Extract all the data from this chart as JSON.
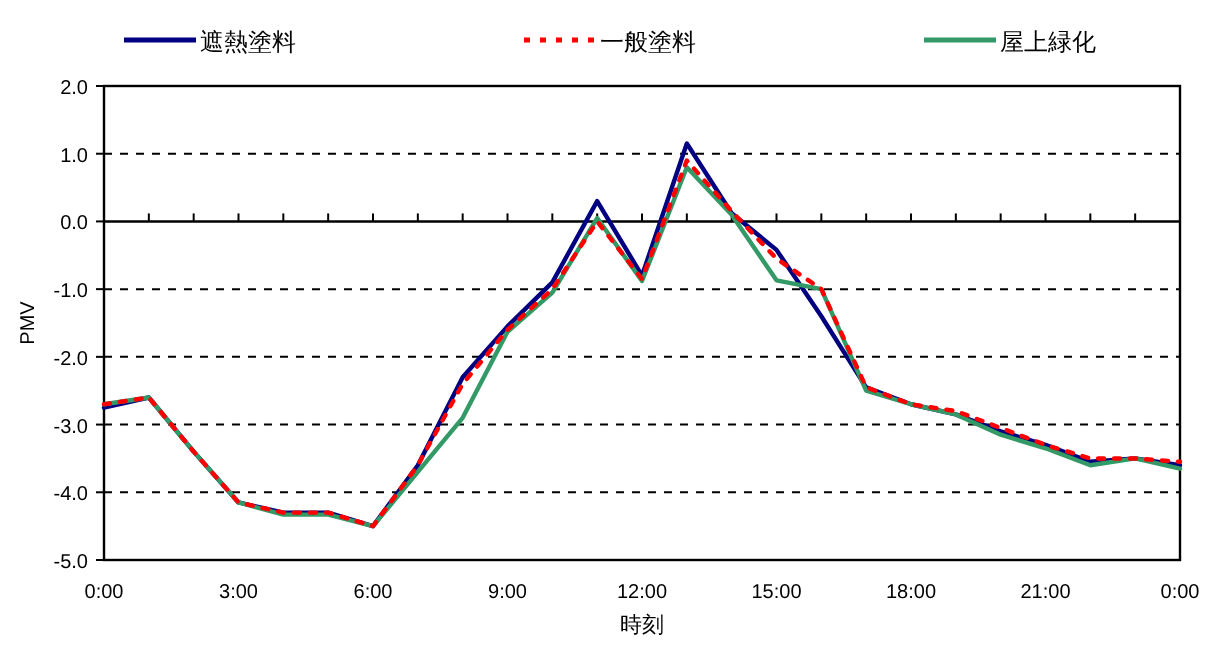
{
  "chart_data": {
    "type": "line",
    "xlabel": "時刻",
    "ylabel": "PMV",
    "x": [
      0,
      1,
      2,
      3,
      4,
      5,
      6,
      7,
      8,
      9,
      10,
      11,
      12,
      13,
      14,
      15,
      16,
      17,
      18,
      19,
      20,
      21,
      22,
      23,
      24
    ],
    "xlim": [
      0,
      24
    ],
    "xticks": [
      {
        "value": 0,
        "label": "0:00"
      },
      {
        "value": 3,
        "label": "3:00"
      },
      {
        "value": 6,
        "label": "6:00"
      },
      {
        "value": 9,
        "label": "9:00"
      },
      {
        "value": 12,
        "label": "12:00"
      },
      {
        "value": 15,
        "label": "15:00"
      },
      {
        "value": 18,
        "label": "18:00"
      },
      {
        "value": 21,
        "label": "21:00"
      },
      {
        "value": 24,
        "label": "0:00"
      }
    ],
    "ylim": [
      -5,
      2
    ],
    "yticks": [
      {
        "value": -5,
        "label": "-5.0"
      },
      {
        "value": -4,
        "label": "-4.0"
      },
      {
        "value": -3,
        "label": "-3.0"
      },
      {
        "value": -2,
        "label": "-2.0"
      },
      {
        "value": -1,
        "label": "-1.0"
      },
      {
        "value": 0,
        "label": "0.0"
      },
      {
        "value": 1,
        "label": "1.0"
      },
      {
        "value": 2,
        "label": "2.0"
      }
    ],
    "grid": "y",
    "legend": "top",
    "marker": "none",
    "series": [
      {
        "name": "遮熱塗料",
        "color": "#000080",
        "line_style": "solid",
        "values": [
          -2.75,
          -2.6,
          -3.4,
          -4.15,
          -4.3,
          -4.3,
          -4.5,
          -3.6,
          -2.3,
          -1.55,
          -0.9,
          0.3,
          -0.8,
          1.15,
          0.12,
          -0.42,
          -1.4,
          -2.45,
          -2.7,
          -2.85,
          -3.1,
          -3.3,
          -3.55,
          -3.5,
          -3.6
        ]
      },
      {
        "name": "一般塗料",
        "color": "#ff0000",
        "line_style": "dotted",
        "values": [
          -2.7,
          -2.6,
          -3.4,
          -4.15,
          -4.3,
          -4.3,
          -4.5,
          -3.6,
          -2.4,
          -1.6,
          -1.0,
          0.0,
          -0.85,
          0.9,
          0.15,
          -0.55,
          -1.0,
          -2.45,
          -2.7,
          -2.8,
          -3.05,
          -3.3,
          -3.5,
          -3.5,
          -3.55
        ]
      },
      {
        "name": "屋上緑化",
        "color": "#339966",
        "line_style": "solid",
        "values": [
          -2.7,
          -2.6,
          -3.4,
          -4.15,
          -4.33,
          -4.33,
          -4.5,
          -3.7,
          -2.9,
          -1.63,
          -1.05,
          0.05,
          -0.88,
          0.8,
          0.1,
          -0.87,
          -1.0,
          -2.5,
          -2.7,
          -2.85,
          -3.15,
          -3.35,
          -3.6,
          -3.5,
          -3.65
        ]
      }
    ]
  }
}
